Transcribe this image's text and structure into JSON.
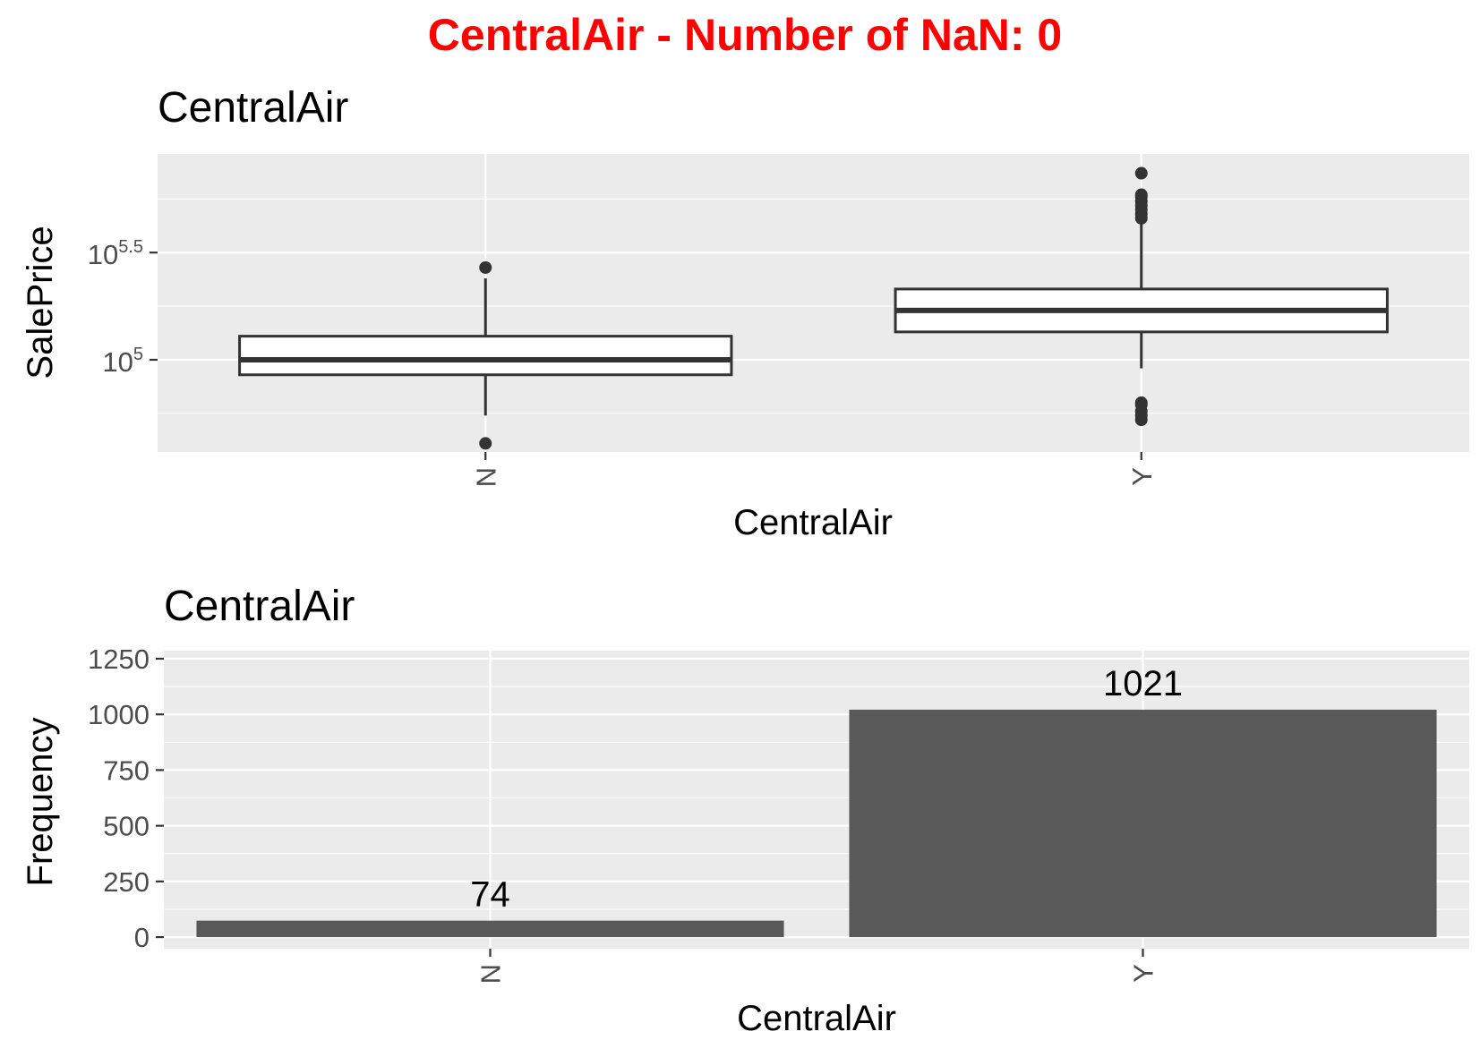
{
  "main_title": "CentralAir - Number of NaN: 0",
  "colors": {
    "main_title": "#ff0000",
    "panel_background": "#ebebeb",
    "bar_fill": "#595959",
    "box_fill": "#ffffff",
    "box_line": "#333333"
  },
  "chart_data": [
    {
      "type": "box",
      "title": "CentralAir",
      "xlabel": "CentralAir",
      "ylabel": "SalePrice",
      "y_scale": "log10",
      "ylim": [
        4.57,
        5.96
      ],
      "y_ticks": [
        {
          "base": "10",
          "exp": "5",
          "value": 5.0
        },
        {
          "base": "10",
          "exp": "5.5",
          "value": 5.5
        }
      ],
      "categories": [
        "N",
        "Y"
      ],
      "boxes": [
        {
          "category": "N",
          "whisker_low": 4.74,
          "q1": 4.93,
          "median": 5.0,
          "q3": 5.11,
          "whisker_high": 5.38,
          "outliers": [
            4.61,
            5.43
          ]
        },
        {
          "category": "Y",
          "whisker_low": 4.96,
          "q1": 5.13,
          "median": 5.23,
          "q3": 5.33,
          "whisker_high": 5.65,
          "outliers": [
            4.72,
            4.74,
            4.76,
            4.79,
            4.8,
            5.66,
            5.68,
            5.7,
            5.72,
            5.74,
            5.76,
            5.77,
            5.87
          ]
        }
      ],
      "grid": true
    },
    {
      "type": "bar",
      "title": "CentralAir",
      "xlabel": "CentralAir",
      "ylabel": "Frequency",
      "categories": [
        "N",
        "Y"
      ],
      "values": [
        74,
        1021
      ],
      "data_labels": [
        "74",
        "1021"
      ],
      "ylim": [
        -52,
        1286
      ],
      "y_ticks": [
        0,
        250,
        500,
        750,
        1000,
        1250
      ],
      "y_tick_labels": [
        "0",
        "250",
        "500",
        "750",
        "1000",
        "1250"
      ],
      "grid": true
    }
  ]
}
